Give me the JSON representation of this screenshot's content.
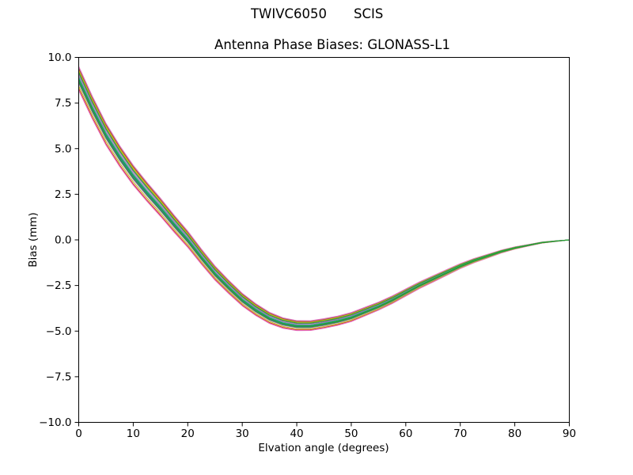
{
  "chart_data": {
    "type": "line",
    "suptitle_left": "TWIVC6050",
    "suptitle_right": "SCIS",
    "title": "Antenna Phase Biases: GLONASS-L1",
    "xlabel": "Elvation angle (degrees)",
    "ylabel": "Bias (mm)",
    "xlim": [
      0,
      90
    ],
    "ylim": [
      -10,
      10
    ],
    "xticks": [
      0,
      10,
      20,
      30,
      40,
      50,
      60,
      70,
      80,
      90
    ],
    "yticks": [
      10.0,
      7.5,
      5.0,
      2.5,
      0.0,
      -2.5,
      -5.0,
      -7.5,
      -10.0
    ],
    "grid": false,
    "legend": "none",
    "background_color": "#ffffff",
    "axes_color": "#000000",
    "line_width": 1.1,
    "x": [
      0,
      2.5,
      5,
      7.5,
      10,
      12.5,
      15,
      17.5,
      20,
      22.5,
      25,
      27.5,
      30,
      32.5,
      35,
      37.5,
      40,
      42.5,
      45,
      47.5,
      50,
      52.5,
      55,
      57.5,
      60,
      62.5,
      65,
      67.5,
      70,
      72.5,
      75,
      77.5,
      80,
      82.5,
      85,
      87.5,
      90
    ],
    "base": [
      8.8,
      7.2,
      5.75,
      4.55,
      3.5,
      2.6,
      1.75,
      0.85,
      0.0,
      -0.95,
      -1.85,
      -2.6,
      -3.3,
      -3.85,
      -4.3,
      -4.58,
      -4.72,
      -4.72,
      -4.6,
      -4.45,
      -4.25,
      -3.95,
      -3.65,
      -3.3,
      -2.9,
      -2.5,
      -2.15,
      -1.8,
      -1.45,
      -1.15,
      -0.9,
      -0.65,
      -0.45,
      -0.3,
      -0.15,
      -0.07,
      0.0
    ],
    "spread_weight": [
      1.0,
      0.96,
      0.92,
      0.88,
      0.84,
      0.8,
      0.76,
      0.72,
      0.68,
      0.64,
      0.6,
      0.56,
      0.53,
      0.5,
      0.47,
      0.44,
      0.42,
      0.41,
      0.4,
      0.39,
      0.38,
      0.36,
      0.34,
      0.32,
      0.3,
      0.28,
      0.26,
      0.24,
      0.21,
      0.18,
      0.15,
      0.12,
      0.09,
      0.06,
      0.04,
      0.02,
      0.0
    ],
    "series": [
      {
        "name": "line-01",
        "color": "#d62728",
        "offset": -0.52
      },
      {
        "name": "line-02",
        "color": "#ff7f0e",
        "offset": 0.55
      },
      {
        "name": "line-03",
        "color": "#8c564b",
        "offset": 0.62
      },
      {
        "name": "line-04",
        "color": "#e377c2",
        "offset": 0.7
      },
      {
        "name": "line-05",
        "color": "#e377c2",
        "offset": -0.6
      },
      {
        "name": "line-06",
        "color": "#bcbd22",
        "offset": 0.47
      },
      {
        "name": "line-07",
        "color": "#bcbd22",
        "offset": -0.38
      },
      {
        "name": "line-08",
        "color": "#9467bd",
        "offset": -0.22
      },
      {
        "name": "line-09",
        "color": "#9467bd",
        "offset": 0.28
      },
      {
        "name": "line-10",
        "color": "#7f7f7f",
        "offset": 0.15
      },
      {
        "name": "line-11",
        "color": "#2ca02c",
        "offset": 0.38
      },
      {
        "name": "line-12",
        "color": "#1f77b4",
        "offset": -0.08
      },
      {
        "name": "line-13",
        "color": "#17becf",
        "offset": 0.08
      },
      {
        "name": "line-14",
        "color": "#1f77b4",
        "offset": 0.0
      },
      {
        "name": "line-15",
        "color": "#2ca02c",
        "offset": -0.14
      },
      {
        "name": "line-16",
        "color": "#2ca02c",
        "offset": 0.02
      }
    ]
  }
}
